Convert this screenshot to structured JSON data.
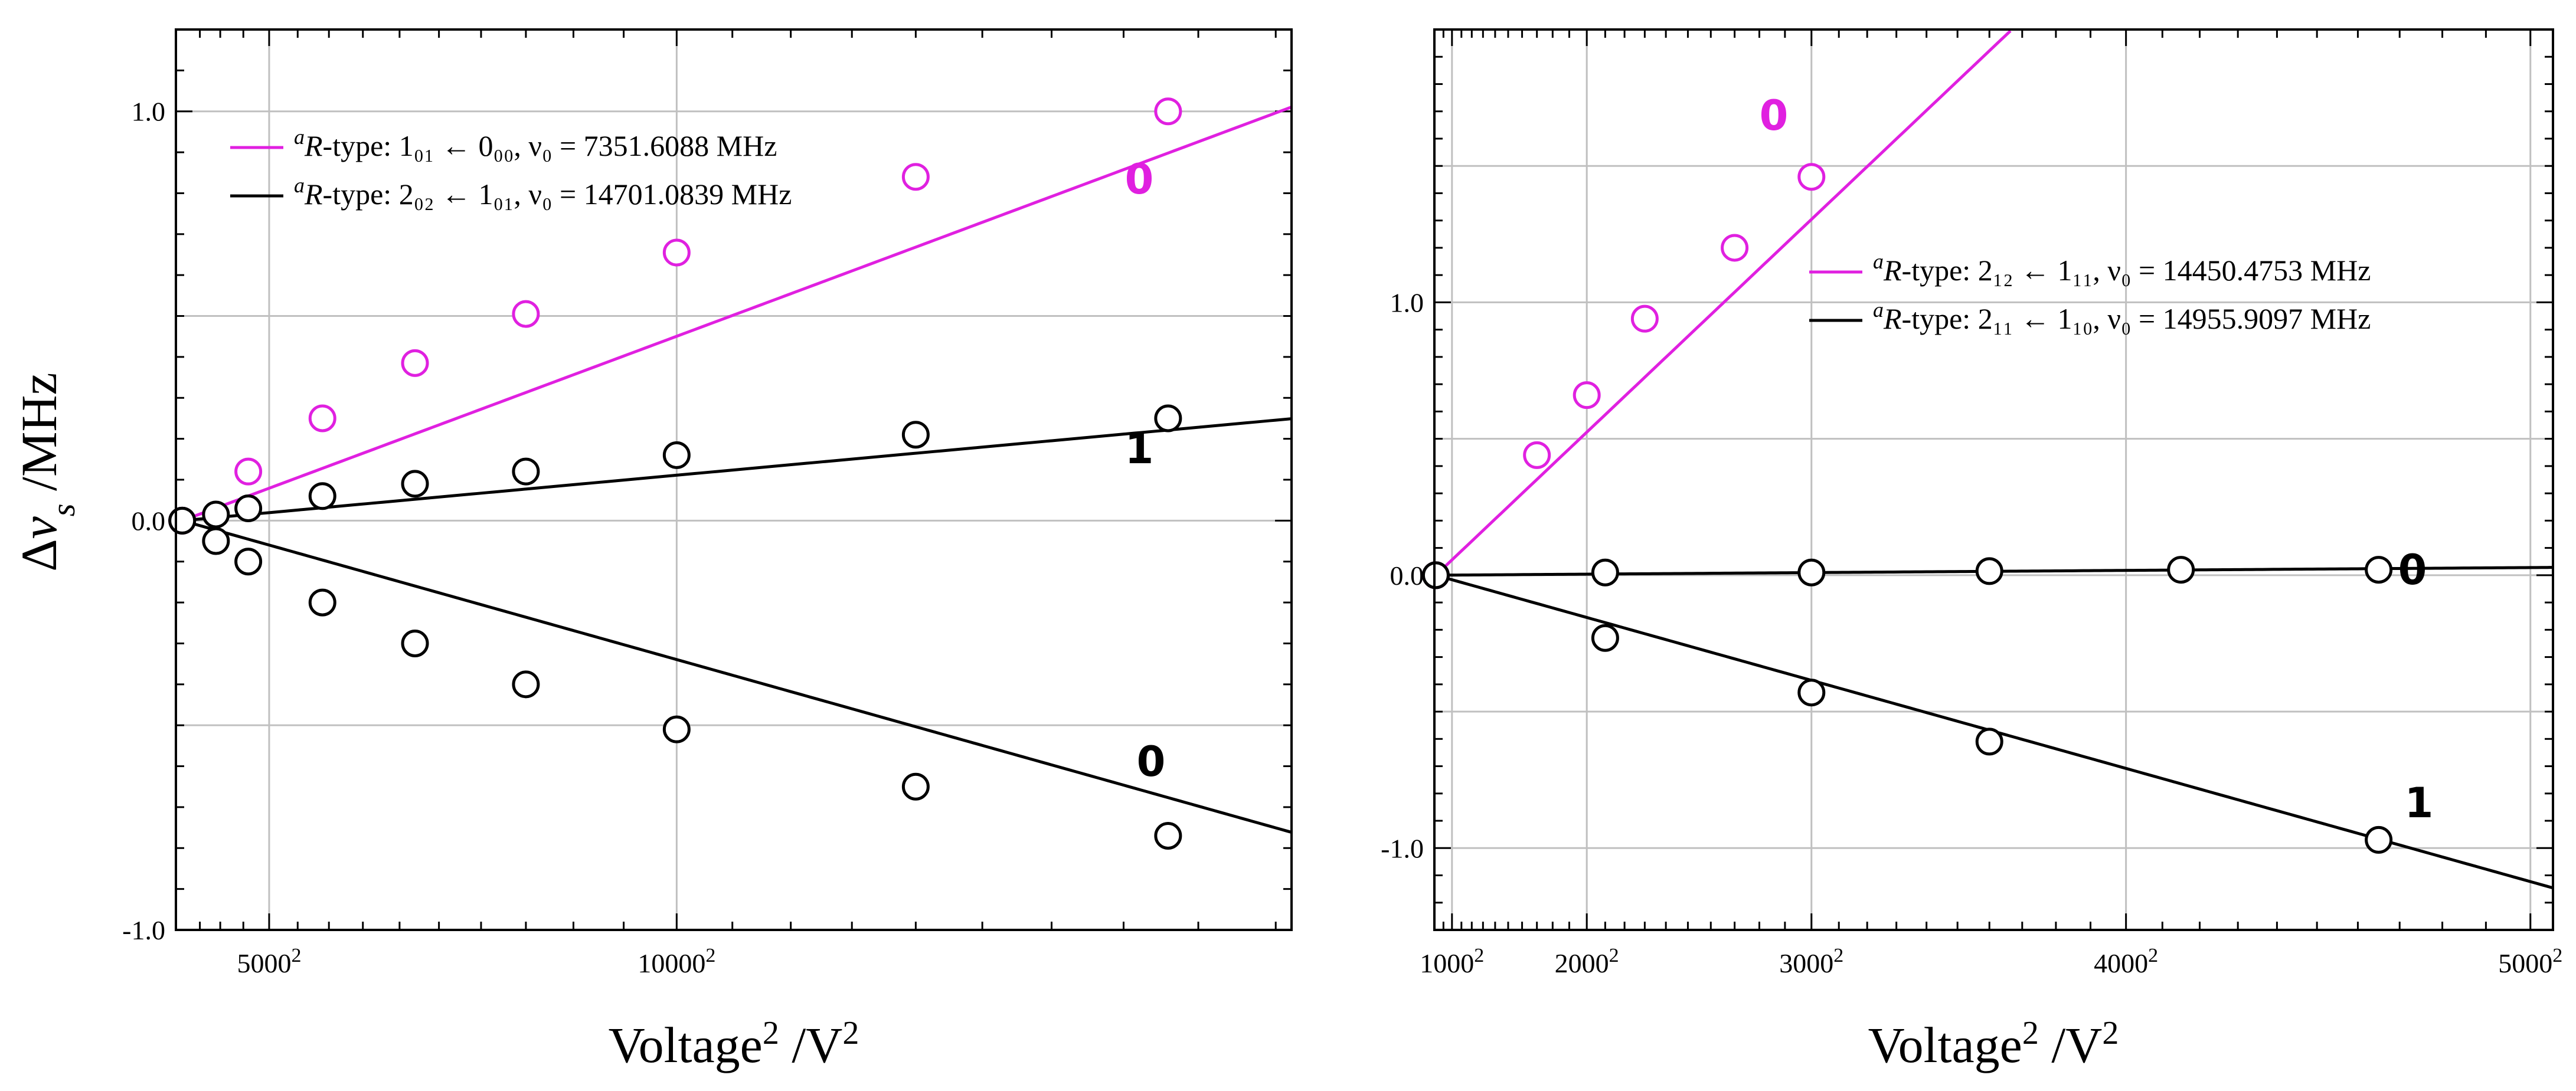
{
  "colors": {
    "magenta": "#e020e0",
    "black": "#000000",
    "grid": "#c0c0c0",
    "marker_fill": "#ffffff"
  },
  "chart_data": [
    {
      "type": "scatter",
      "ylabel": "Δν_s /MHz",
      "xlabel": "Voltage² /V²",
      "xlim": [
        2800,
        14600
      ],
      "x_axis_quantity": "voltage",
      "x_scale": "square",
      "ylim": [
        -1.0,
        1.2
      ],
      "grid": true,
      "legend_position": "top-left",
      "x_ticks": [
        {
          "value": 5000,
          "label": "5000",
          "sup": "2"
        },
        {
          "value": 10000,
          "label": "10000",
          "sup": "2"
        }
      ],
      "y_ticks": [
        {
          "value": -1.0,
          "label": "-1.0"
        },
        {
          "value": 0.0,
          "label": "0.0"
        },
        {
          "value": 1.0,
          "label": "1.0"
        }
      ],
      "legend": [
        {
          "color": "magenta",
          "prefix": "a",
          "type_label": "R-type:",
          "transition": "1₀₁ ← 0₀₀, ν₀ =   7351.6088 MHz"
        },
        {
          "color": "black",
          "prefix": "a",
          "type_label": "R-type:",
          "transition": "2₀₂ ← 1₀₁, ν₀ = 14701.0839 MHz"
        }
      ],
      "series": [
        {
          "color": "magenta",
          "label": "0",
          "slope": 4.95e-09,
          "x": [
            3000,
            4600,
            5900,
            7200,
            8500,
            10000,
            12000,
            13800
          ],
          "y": [
            0.0,
            0.12,
            0.25,
            0.385,
            0.505,
            0.655,
            0.84,
            1.0
          ]
        },
        {
          "color": "black",
          "label": "1",
          "slope": 1.22e-09,
          "x": [
            3000,
            3900,
            4600,
            5900,
            7200,
            8500,
            10000,
            12000,
            13800
          ],
          "y": [
            0.0,
            0.015,
            0.03,
            0.06,
            0.09,
            0.12,
            0.16,
            0.21,
            0.25
          ]
        },
        {
          "color": "black",
          "label": "0",
          "slope": -3.73e-09,
          "x": [
            3000,
            3900,
            4600,
            5900,
            7200,
            8500,
            10000,
            12000,
            13800
          ],
          "y": [
            0.0,
            -0.05,
            -0.1,
            -0.2,
            -0.3,
            -0.4,
            -0.51,
            -0.65,
            -0.77
          ]
        }
      ]
    },
    {
      "type": "scatter",
      "ylabel": "",
      "xlabel": "Voltage² /V²",
      "xlim": [
        780,
        5050
      ],
      "x_axis_quantity": "voltage",
      "x_scale": "square",
      "ylim": [
        -1.3,
        2.0
      ],
      "grid": true,
      "legend_position": "top-right",
      "x_ticks": [
        {
          "value": 1000,
          "label": "1000",
          "sup": "2"
        },
        {
          "value": 2000,
          "label": "2000",
          "sup": "2"
        },
        {
          "value": 3000,
          "label": "3000",
          "sup": "2"
        },
        {
          "value": 4000,
          "label": "4000",
          "sup": "2"
        },
        {
          "value": 5000,
          "label": "5000",
          "sup": "2"
        }
      ],
      "y_ticks": [
        {
          "value": -1.0,
          "label": "-1.0"
        },
        {
          "value": 0.0,
          "label": "0.0"
        },
        {
          "value": 1.0,
          "label": "1.0"
        }
      ],
      "legend": [
        {
          "color": "magenta",
          "prefix": "a",
          "type_label": "R-type:",
          "transition": "2₁₂ ← 1₁₁, ν₀ = 14450.4753 MHz"
        },
        {
          "color": "black",
          "prefix": "a",
          "type_label": "R-type:",
          "transition": "2₁₁ ← 1₁₀, ν₀ = 14955.9097 MHz"
        }
      ],
      "series": [
        {
          "color": "magenta",
          "label": "0",
          "slope": 1.56e-07,
          "x": [
            800,
            1700,
            2000,
            2300,
            2700,
            3000
          ],
          "y": [
            0.0,
            0.44,
            0.66,
            0.94,
            1.2,
            1.46
          ]
        },
        {
          "color": "black",
          "label": "0",
          "slope": 1.15e-09,
          "x": [
            800,
            2100,
            3000,
            3600,
            4150,
            4650
          ],
          "y": [
            0.0,
            0.01,
            0.01,
            0.015,
            0.02,
            0.02
          ]
        },
        {
          "color": "black",
          "label": "1",
          "slope": -4.61e-08,
          "x": [
            800,
            2100,
            3000,
            3600,
            4650
          ],
          "y": [
            0.0,
            -0.23,
            -0.43,
            -0.61,
            -0.97
          ]
        }
      ]
    }
  ]
}
